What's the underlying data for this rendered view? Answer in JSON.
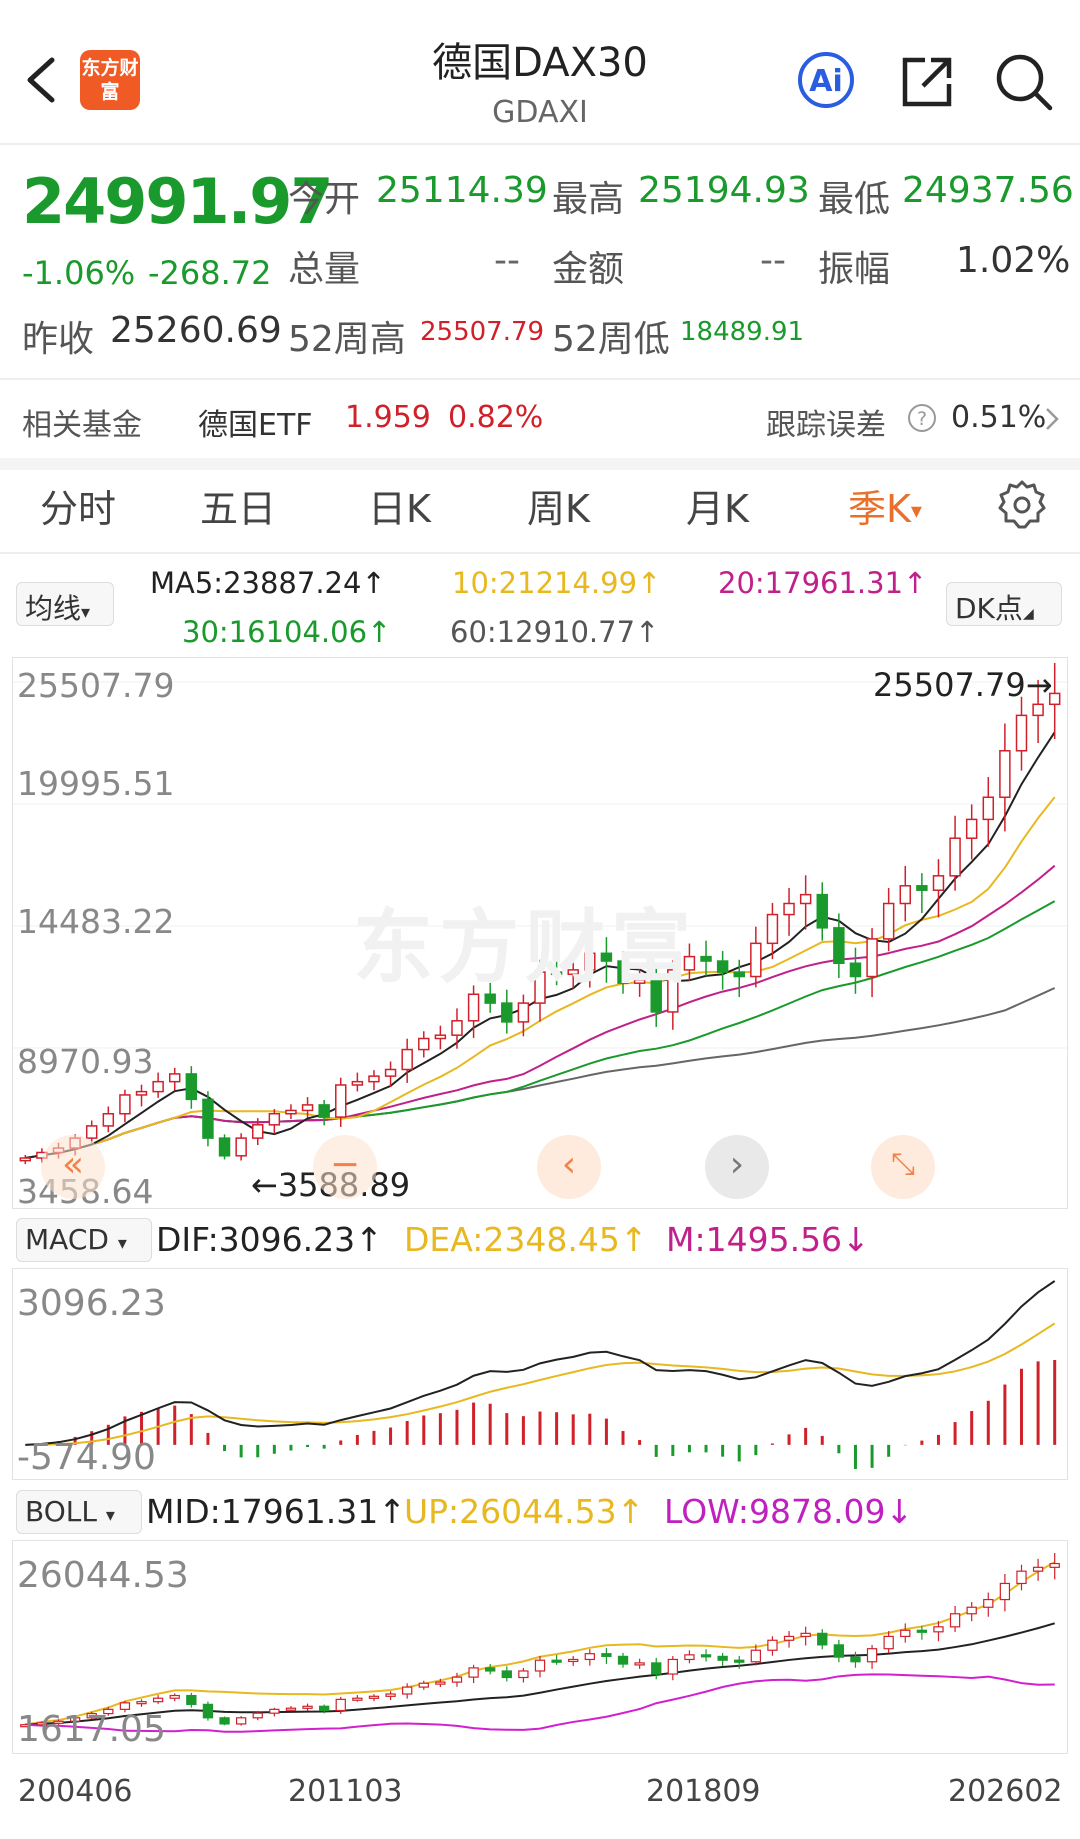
{
  "header": {
    "title": "德国DAX30",
    "subtitle": "GDAXI",
    "logo_text": "东方财富",
    "ai_label": "Ai"
  },
  "quote": {
    "price": "24991.97",
    "change_pct": "-1.06%",
    "change": "-268.72",
    "open_label": "今开",
    "open": "25114.39",
    "high_label": "最高",
    "high": "25194.93",
    "low_label": "最低",
    "low": "24937.56",
    "volume_label": "总量",
    "volume": "--",
    "amount_label": "金额",
    "amount": "--",
    "amplitude_label": "振幅",
    "amplitude": "1.02%",
    "prev_close_label": "昨收",
    "prev_close": "25260.69",
    "w52_high_label": "52周高",
    "w52_high": "25507.79",
    "w52_low_label": "52周低",
    "w52_low": "18489.91"
  },
  "fund": {
    "label": "相关基金",
    "name": "德国ETF",
    "price": "1.959",
    "change": "0.82%",
    "tracking_label": "跟踪误差",
    "tracking_value": "0.51%"
  },
  "tabs": [
    "分时",
    "五日",
    "日K",
    "周K",
    "月K",
    "季K"
  ],
  "ma": {
    "selector": "均线",
    "ma5": "MA5:23887.24↑",
    "ma10": "10:21214.99↑",
    "ma20": "20:17961.31↑",
    "ma30": "30:16104.06↑",
    "ma60": "60:12910.77↑",
    "dk_label": "DK点"
  },
  "main_chart": {
    "y_labels": [
      "25507.79",
      "19995.51",
      "14483.22",
      "8970.93",
      "3458.64"
    ],
    "max_marker": "25507.79",
    "min_marker": "3588.89",
    "watermark": "东方财富"
  },
  "macd": {
    "selector": "MACD",
    "dif": "DIF:3096.23↑",
    "dea": "DEA:2348.45↑",
    "m": "M:1495.56↓",
    "y_top": "3096.23",
    "y_bottom": "-574.90"
  },
  "boll": {
    "selector": "BOLL",
    "mid": "MID:17961.31↑",
    "up": "UP:26044.53↑",
    "low": "LOW:9878.09↓",
    "y_top": "26044.53",
    "y_bottom": "1617.05"
  },
  "x_axis": [
    "200406",
    "201103",
    "201809",
    "202602"
  ],
  "colors": {
    "up": "#d0202a",
    "down": "#1a9a2c",
    "ma5": "#222222",
    "ma10": "#e8b820",
    "ma20": "#c0208a",
    "ma30": "#1a9a2c",
    "ma60": "#666666",
    "accent": "#e8702a"
  },
  "chart_data": {
    "type": "candlestick",
    "title": "德国DAX30",
    "period": "quarterly",
    "x_range": [
      "200406",
      "202602"
    ],
    "y_range": [
      3458.64,
      25507.79
    ],
    "approx_close_series": [
      4000,
      4250,
      4450,
      4900,
      5450,
      6000,
      6850,
      7000,
      7450,
      7800,
      6650,
      4900,
      4100,
      4900,
      5500,
      6000,
      6150,
      6400,
      5850,
      7300,
      7450,
      7700,
      8000,
      8900,
      9400,
      9550,
      10200,
      11400,
      11000,
      10150,
      11000,
      12400,
      12300,
      12500,
      13250,
      12900,
      11900,
      12050,
      10600,
      12500,
      13100,
      12900,
      12400,
      12200,
      13700,
      15000,
      15500,
      15900,
      14400,
      12800,
      12200,
      13900,
      15500,
      16300,
      16100,
      16750,
      18450,
      19300,
      20300,
      22400,
      24000,
      24500,
      24992
    ]
  }
}
